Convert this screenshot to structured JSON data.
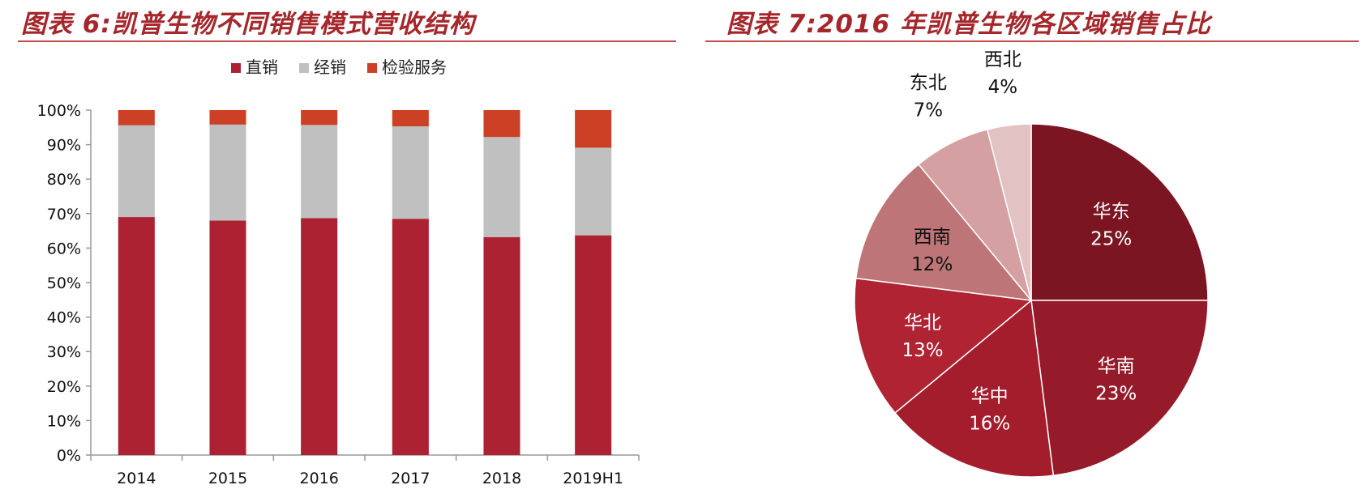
{
  "left": {
    "title": "图表 6:凯普生物不同销售模式营收结构"
  },
  "right": {
    "title": "图表 7:2016 年凯普生物各区域销售占比"
  },
  "chart_data": [
    {
      "type": "bar",
      "stacked": true,
      "categories": [
        "2014",
        "2015",
        "2016",
        "2017",
        "2018",
        "2019H1"
      ],
      "series": [
        {
          "name": "直销",
          "color": "#ad2232",
          "values": [
            69,
            68,
            68.7,
            68.5,
            63.2,
            63.7
          ]
        },
        {
          "name": "经销",
          "color": "#c0c0c0",
          "values": [
            26.6,
            27.8,
            27,
            26.8,
            29,
            25.4
          ]
        },
        {
          "name": "检验服务",
          "color": "#cc4125",
          "values": [
            4.4,
            4.2,
            4.3,
            4.7,
            7.8,
            10.9
          ]
        }
      ],
      "yticks": [
        "0%",
        "10%",
        "20%",
        "30%",
        "40%",
        "50%",
        "60%",
        "70%",
        "80%",
        "90%",
        "100%"
      ],
      "ylim": [
        0,
        100
      ],
      "legend": "top",
      "grid": false
    },
    {
      "type": "pie",
      "slices": [
        {
          "label": "华东",
          "value": 25,
          "value_label": "25%",
          "color": "#7b1522",
          "text_color": "#ffffff"
        },
        {
          "label": "华南",
          "value": 23,
          "value_label": "23%",
          "color": "#961b2a",
          "text_color": "#ffffff"
        },
        {
          "label": "华中",
          "value": 16,
          "value_label": "16%",
          "color": "#a41d2d",
          "text_color": "#ffffff"
        },
        {
          "label": "华北",
          "value": 13,
          "value_label": "13%",
          "color": "#af2333",
          "text_color": "#ffffff"
        },
        {
          "label": "西南",
          "value": 12,
          "value_label": "12%",
          "color": "#be7578",
          "text_color": "#111111"
        },
        {
          "label": "东北",
          "value": 7,
          "value_label": "7%",
          "color": "#d5a0a2",
          "text_color": "#111111"
        },
        {
          "label": "西北",
          "value": 4,
          "value_label": "4%",
          "color": "#e3c2c4",
          "text_color": "#111111"
        }
      ],
      "start": "12 o'clock",
      "direction": "clockwise"
    }
  ]
}
